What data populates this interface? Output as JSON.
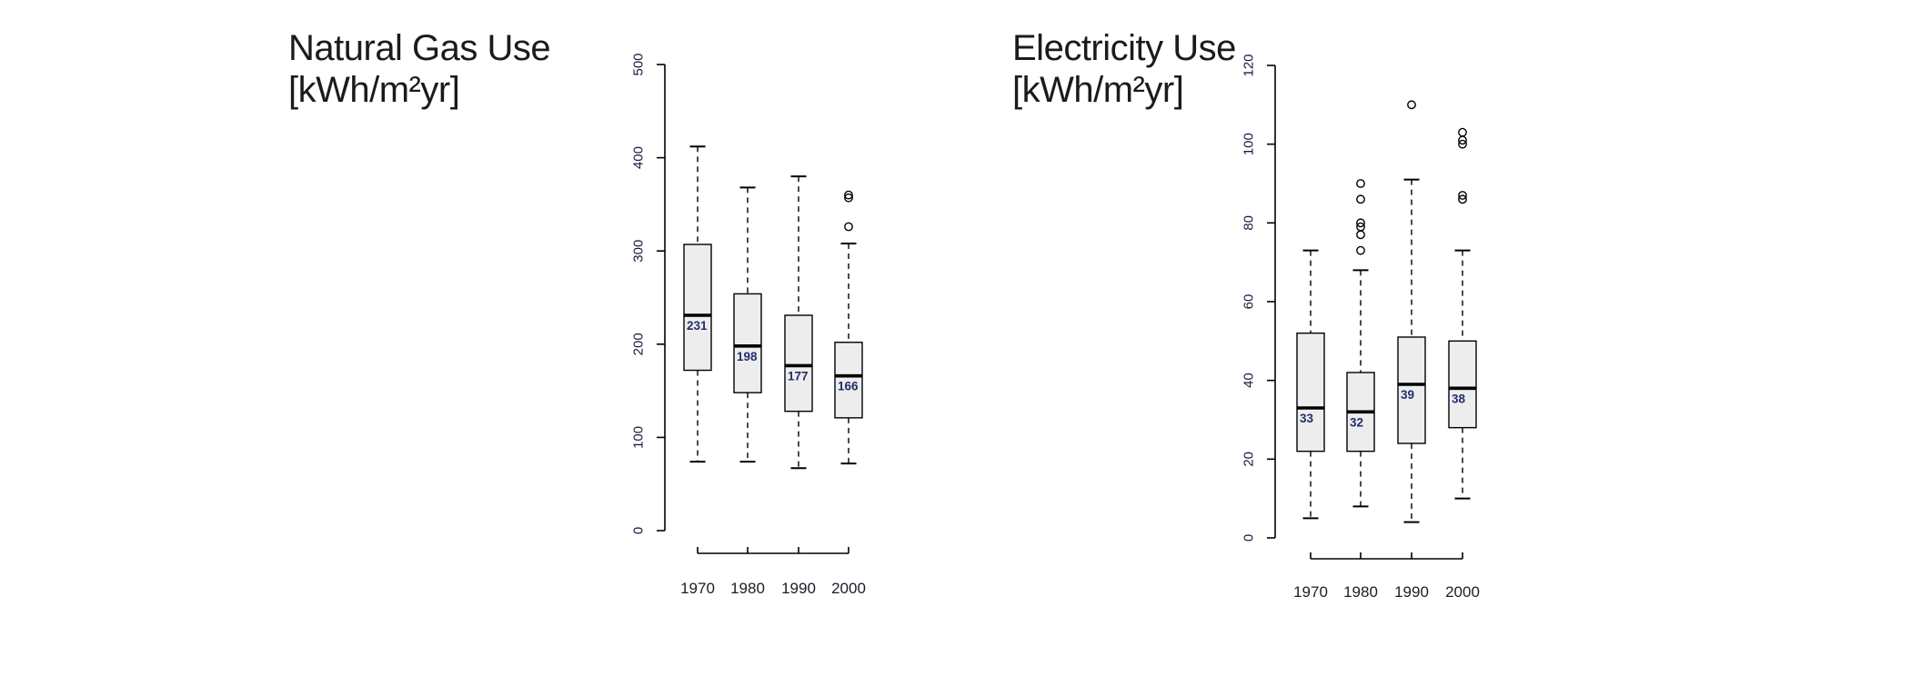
{
  "colors": {
    "background": "#ffffff",
    "box_fill": "#ededed",
    "box_border": "#000000",
    "median_line": "#000000",
    "median_label": "#232d6e",
    "whisker": "#000000",
    "axis": "#000000",
    "y_tick_label": "#1a1a40",
    "x_tick_label": "#1c1c28",
    "title": "#1b1b1b"
  },
  "chart_data": [
    {
      "type": "boxplot",
      "title_line1": "Natural Gas Use",
      "title_line2": "[kWh/m²yr]",
      "categories": [
        "1970",
        "1980",
        "1990",
        "2000"
      ],
      "ylim": [
        0,
        500
      ],
      "yticks": [
        0,
        100,
        200,
        300,
        400,
        500
      ],
      "ytick_labels": [
        "0",
        "100",
        "200",
        "300",
        "400",
        "500"
      ],
      "grid": false,
      "legend": "none",
      "series": [
        {
          "category": "1970",
          "low": 74,
          "q1": 172,
          "median": 231,
          "q3": 307,
          "high": 412,
          "outliers": [],
          "median_label": "231"
        },
        {
          "category": "1980",
          "low": 74,
          "q1": 148,
          "median": 198,
          "q3": 254,
          "high": 368,
          "outliers": [],
          "median_label": "198"
        },
        {
          "category": "1990",
          "low": 67,
          "q1": 128,
          "median": 177,
          "q3": 231,
          "high": 380,
          "outliers": [],
          "median_label": "177"
        },
        {
          "category": "2000",
          "low": 72,
          "q1": 121,
          "median": 166,
          "q3": 202,
          "high": 308,
          "outliers": [
            326,
            357,
            360
          ],
          "median_label": "166"
        }
      ]
    },
    {
      "type": "boxplot",
      "title_line1": "Electricity Use",
      "title_line2": "[kWh/m²yr]",
      "categories": [
        "1970",
        "1980",
        "1990",
        "2000"
      ],
      "ylim": [
        0,
        120
      ],
      "yticks": [
        0,
        20,
        40,
        60,
        80,
        100,
        120
      ],
      "ytick_labels": [
        "0",
        "20",
        "40",
        "60",
        "80",
        "100",
        "120"
      ],
      "grid": false,
      "legend": "none",
      "series": [
        {
          "category": "1970",
          "low": 5,
          "q1": 22,
          "median": 33,
          "q3": 52,
          "high": 73,
          "outliers": [],
          "median_label": "33"
        },
        {
          "category": "1980",
          "low": 8,
          "q1": 22,
          "median": 32,
          "q3": 42,
          "high": 68,
          "outliers": [
            73,
            77,
            79,
            80,
            86,
            90
          ],
          "median_label": "32"
        },
        {
          "category": "1990",
          "low": 4,
          "q1": 24,
          "median": 39,
          "q3": 51,
          "high": 91,
          "outliers": [
            110
          ],
          "median_label": "39"
        },
        {
          "category": "2000",
          "low": 10,
          "q1": 28,
          "median": 38,
          "q3": 50,
          "high": 73,
          "outliers": [
            86,
            87,
            100,
            101,
            103
          ],
          "median_label": "38"
        }
      ]
    }
  ]
}
